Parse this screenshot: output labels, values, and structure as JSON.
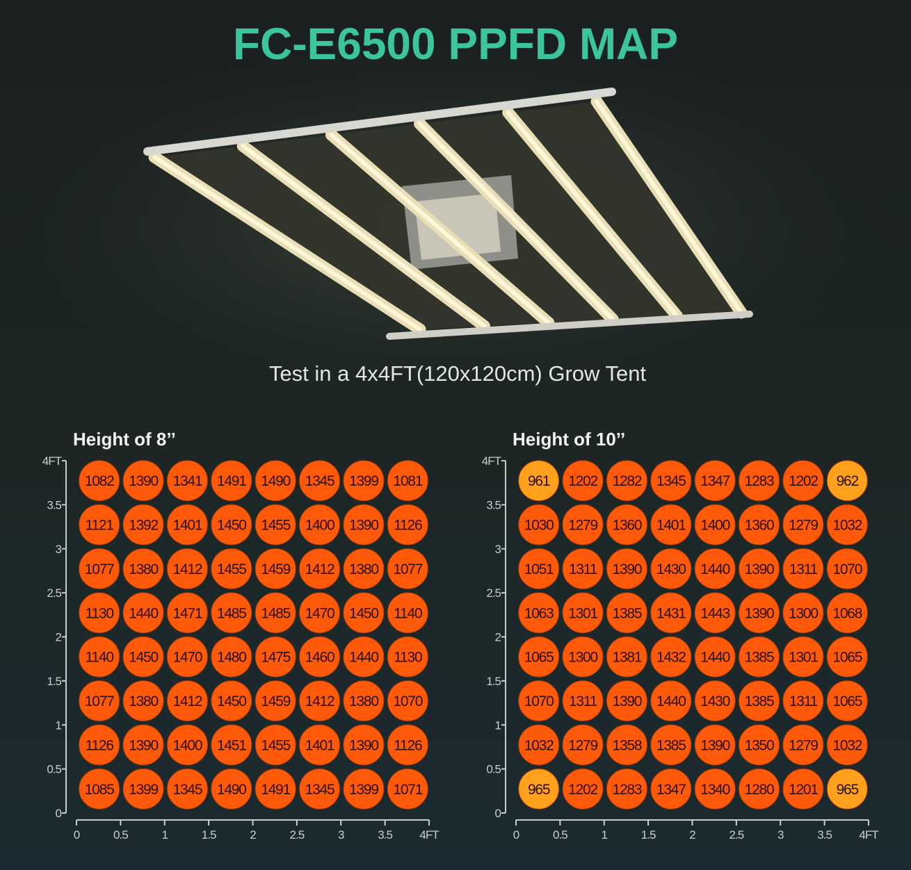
{
  "header": {
    "title": "FC-E6500 PPFD MAP",
    "subtitle": "Test in a 4x4FT(120x120cm) Grow Tent"
  },
  "colors": {
    "title": "#3cc49c",
    "high": "#ff5a0a",
    "low": "#ffa11c",
    "background": "#1b2322"
  },
  "chart_data": [
    {
      "type": "heatmap",
      "title": "Height of 8’’",
      "x_ticks": [
        "0",
        "0.5",
        "1",
        "1.5",
        "2",
        "2.5",
        "3",
        "3.5",
        "4FT"
      ],
      "y_ticks": [
        "0",
        "0.5",
        "1",
        "1.5",
        "2",
        "2.5",
        "3",
        "3.5",
        "4FT"
      ],
      "xlim": [
        0,
        4
      ],
      "ylim": [
        0,
        4
      ],
      "rows_top_to_bottom": [
        [
          1082,
          1390,
          1341,
          1491,
          1490,
          1345,
          1399,
          1081
        ],
        [
          1121,
          1392,
          1401,
          1450,
          1455,
          1400,
          1390,
          1126
        ],
        [
          1077,
          1380,
          1412,
          1455,
          1459,
          1412,
          1380,
          1077
        ],
        [
          1130,
          1440,
          1471,
          1485,
          1485,
          1470,
          1450,
          1140
        ],
        [
          1140,
          1450,
          1470,
          1480,
          1475,
          1460,
          1440,
          1130
        ],
        [
          1077,
          1380,
          1412,
          1450,
          1459,
          1412,
          1380,
          1070
        ],
        [
          1126,
          1390,
          1400,
          1451,
          1455,
          1401,
          1390,
          1126
        ],
        [
          1085,
          1399,
          1345,
          1490,
          1491,
          1345,
          1399,
          1071
        ]
      ]
    },
    {
      "type": "heatmap",
      "title": "Height of 10’’",
      "x_ticks": [
        "0",
        "0.5",
        "1",
        "1.5",
        "2",
        "2.5",
        "3",
        "3.5",
        "4FT"
      ],
      "y_ticks": [
        "0",
        "0.5",
        "1",
        "1.5",
        "2",
        "2.5",
        "3",
        "3.5",
        "4FT"
      ],
      "xlim": [
        0,
        4
      ],
      "ylim": [
        0,
        4
      ],
      "rows_top_to_bottom": [
        [
          961,
          1202,
          1282,
          1345,
          1347,
          1283,
          1202,
          962
        ],
        [
          1030,
          1279,
          1360,
          1401,
          1400,
          1360,
          1279,
          1032
        ],
        [
          1051,
          1311,
          1390,
          1430,
          1440,
          1390,
          1311,
          1070
        ],
        [
          1063,
          1301,
          1385,
          1431,
          1443,
          1390,
          1300,
          1068
        ],
        [
          1065,
          1300,
          1381,
          1432,
          1440,
          1385,
          1301,
          1065
        ],
        [
          1070,
          1311,
          1390,
          1440,
          1430,
          1385,
          1311,
          1065
        ],
        [
          1032,
          1279,
          1358,
          1385,
          1390,
          1350,
          1279,
          1032
        ],
        [
          965,
          1202,
          1283,
          1347,
          1340,
          1280,
          1201,
          965
        ]
      ]
    }
  ]
}
